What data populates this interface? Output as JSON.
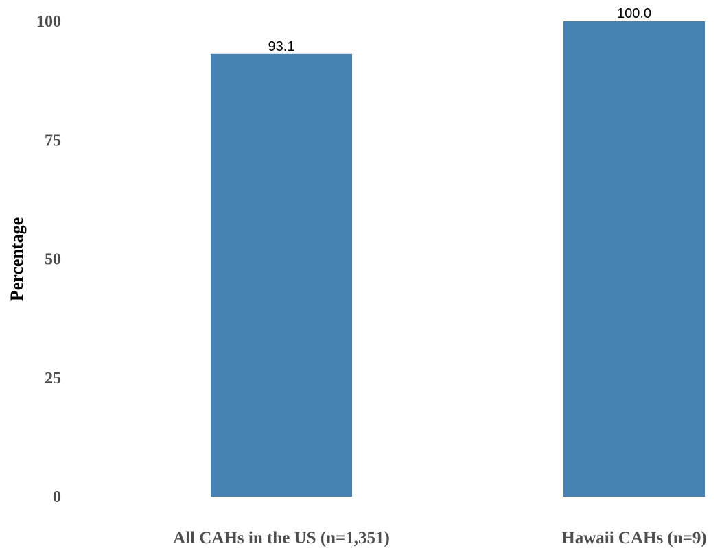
{
  "chart_data": {
    "type": "bar",
    "categories": [
      "All CAHs in the US (n=1,351)",
      "Hawaii CAHs (n=9)"
    ],
    "values": [
      93.1,
      100.0
    ],
    "value_labels": [
      "93.1",
      "100.0"
    ],
    "title": "",
    "xlabel": "",
    "ylabel": "Percentage",
    "ylim": [
      0,
      100
    ],
    "yticks": [
      0,
      25,
      50,
      75,
      100
    ],
    "grid": false,
    "bar_color": "#4682b4"
  }
}
